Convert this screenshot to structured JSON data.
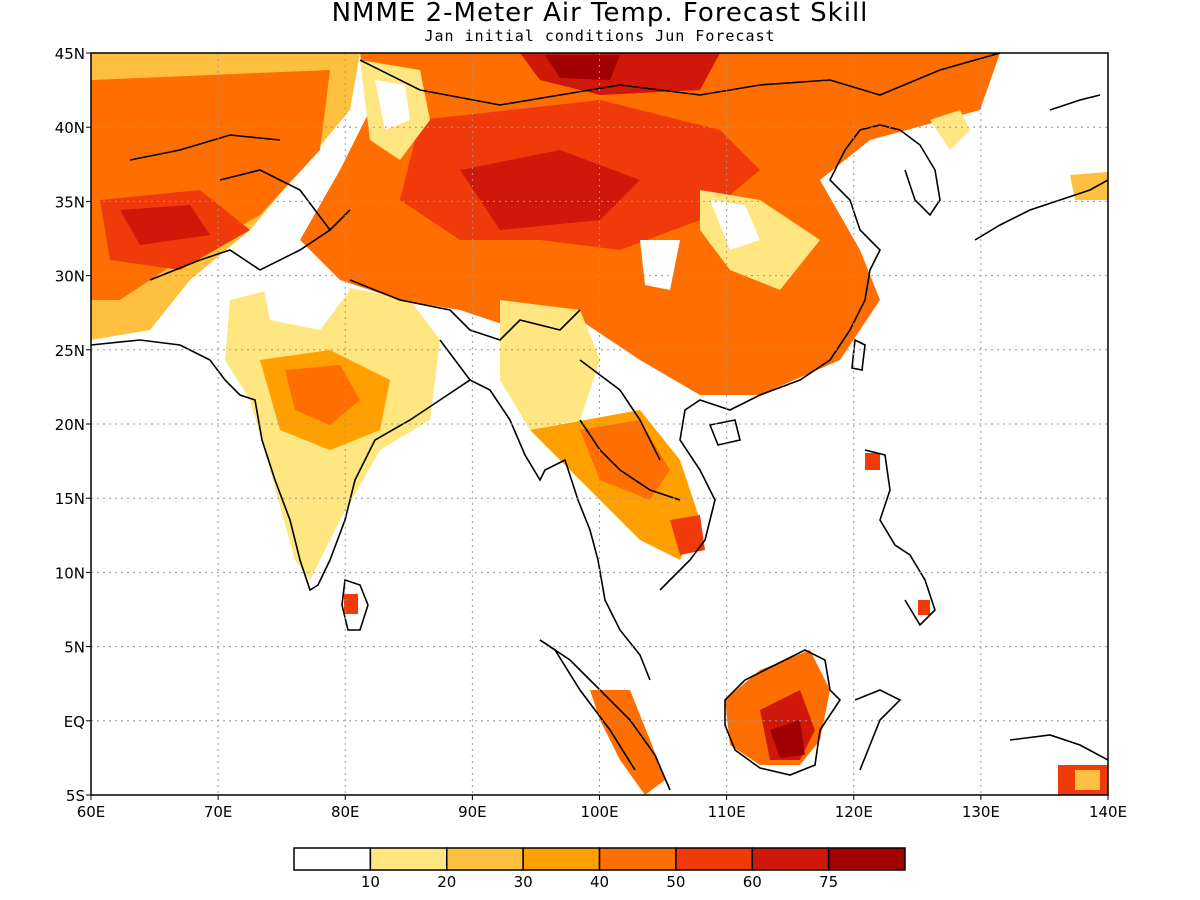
{
  "title": "NMME 2-Meter Air Temp. Forecast Skill",
  "subtitle": "Jan initial conditions  Jun Forecast",
  "map": {
    "lon_range": [
      60,
      140
    ],
    "lat_range": [
      -5,
      45
    ],
    "x_ticks": [
      "60E",
      "70E",
      "80E",
      "90E",
      "100E",
      "110E",
      "120E",
      "130E",
      "140E"
    ],
    "y_ticks": [
      "5S",
      "EQ",
      "5N",
      "10N",
      "15N",
      "20N",
      "25N",
      "30N",
      "35N",
      "40N",
      "45N"
    ],
    "grid": "dotted"
  },
  "colorbar": {
    "colors": [
      "#ffffff",
      "#ffe680",
      "#ffc040",
      "#ffa000",
      "#ff6e00",
      "#f03a0a",
      "#d0180a",
      "#a00000"
    ],
    "labels": [
      "10",
      "20",
      "30",
      "40",
      "50",
      "60",
      "75"
    ]
  }
}
